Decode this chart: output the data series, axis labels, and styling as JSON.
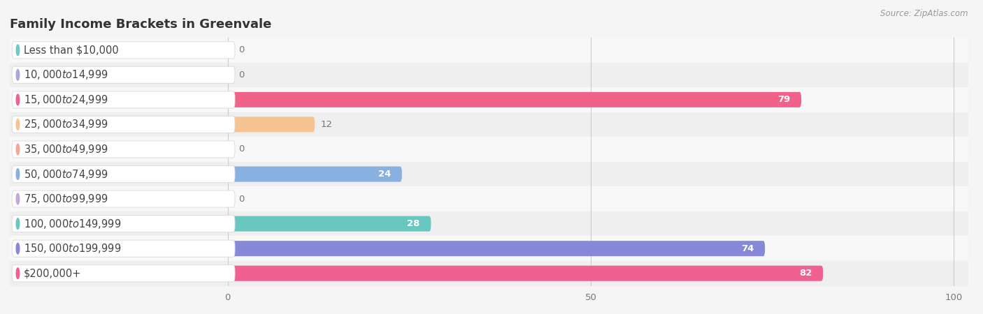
{
  "title": "Family Income Brackets in Greenvale",
  "source": "Source: ZipAtlas.com",
  "categories": [
    "Less than $10,000",
    "$10,000 to $14,999",
    "$15,000 to $24,999",
    "$25,000 to $34,999",
    "$35,000 to $49,999",
    "$50,000 to $74,999",
    "$75,000 to $99,999",
    "$100,000 to $149,999",
    "$150,000 to $199,999",
    "$200,000+"
  ],
  "values": [
    0,
    0,
    79,
    12,
    0,
    24,
    0,
    28,
    74,
    82
  ],
  "bar_colors": [
    "#6dcdc4",
    "#a8a8d8",
    "#f0628a",
    "#f5c490",
    "#f5a898",
    "#88b0e0",
    "#c8a8d8",
    "#68c8c0",
    "#8888d8",
    "#f06090"
  ],
  "xlim": [
    0,
    100
  ],
  "xticks": [
    0,
    50,
    100
  ],
  "bg_color": "#f5f5f5",
  "row_colors": [
    "#f8f8f8",
    "#efefef"
  ],
  "title_fontsize": 13,
  "label_fontsize": 10.5,
  "value_fontsize": 9.5,
  "title_color": "#333333",
  "label_color": "#444444",
  "value_color_inside": "#ffffff",
  "value_color_outside": "#777777",
  "source_color": "#999999"
}
